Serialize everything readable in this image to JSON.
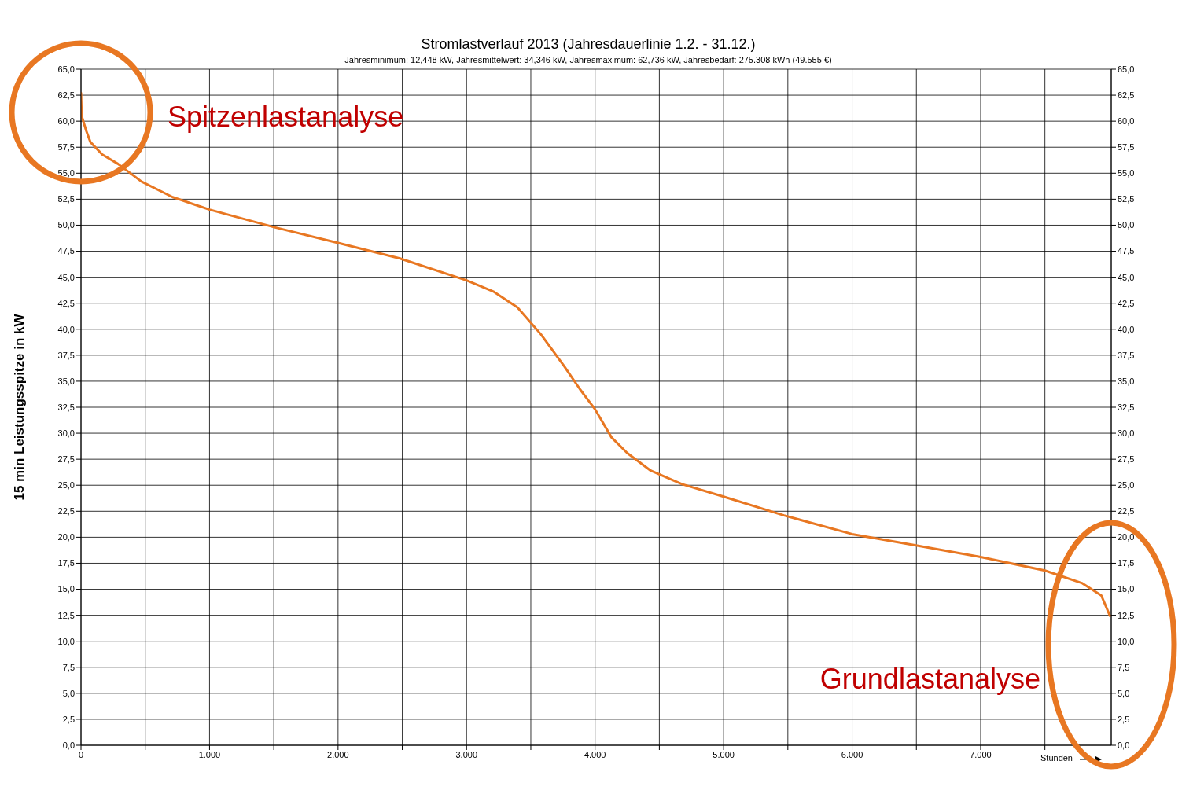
{
  "chart_data": {
    "type": "line",
    "title": "Stromlastverlauf 2013 (Jahresdauerlinie 1.2. - 31.12.)",
    "subtitle": "Jahresminimum: 12,448 kW, Jahresmittelwert: 34,346 kW, Jahresmaximum: 62,736 kW, Jahresbedarf: 275.308 kWh (49.555 €)",
    "xlabel": "Stunden",
    "ylabel": "15 min Leistungsspitze in kW",
    "annotations": [
      "Spitzenlastanalyse",
      "Grundlastanalyse"
    ],
    "x": [
      0,
      5,
      40,
      73,
      165,
      287,
      470,
      713,
      1000,
      1506,
      2000,
      2482,
      3000,
      3213,
      3396,
      3579,
      3762,
      3884,
      4000,
      4128,
      4250,
      4433,
      4677,
      5000,
      5470,
      6000,
      6506,
      7000,
      7500,
      7787,
      7939,
      8006
    ],
    "series": [
      {
        "color": "#e87722",
        "values": [
          62.7,
          60.5,
          59.1,
          58.0,
          56.8,
          55.9,
          54.2,
          52.7,
          51.5,
          49.8,
          48.3,
          46.8,
          44.7,
          43.6,
          42.1,
          39.5,
          36.4,
          34.2,
          32.3,
          29.6,
          28.1,
          26.4,
          25.1,
          23.9,
          22.1,
          20.3,
          19.2,
          18.1,
          16.8,
          15.6,
          14.4,
          12.448
        ]
      }
    ],
    "xlim": [
      0,
      8016
    ],
    "xticks": [
      0,
      {
        "value": 500,
        "label": null
      },
      {
        "value": 1000,
        "label": "1.000"
      },
      {
        "value": 1500,
        "label": null
      },
      {
        "value": 2000,
        "label": "2.000"
      },
      {
        "value": 2500,
        "label": null
      },
      {
        "value": 3000,
        "label": "3.000"
      },
      {
        "value": 3500,
        "label": null
      },
      {
        "value": 4000,
        "label": "4.000"
      },
      {
        "value": 4500,
        "label": null
      },
      {
        "value": 5000,
        "label": "5.000"
      },
      {
        "value": 5500,
        "label": null
      },
      {
        "value": 6000,
        "label": "6.000"
      },
      {
        "value": 6500,
        "label": null
      },
      {
        "value": 7000,
        "label": "7.000"
      },
      {
        "value": 7500,
        "label": null
      }
    ],
    "ylim": [
      0,
      65
    ],
    "yticks": [
      {
        "value": 0,
        "label": "0,0"
      },
      {
        "value": 2.5,
        "label": "2,5"
      },
      {
        "value": 5,
        "label": "5,0"
      },
      {
        "value": 7.5,
        "label": "7,5"
      },
      {
        "value": 10,
        "label": "10,0"
      },
      {
        "value": 12.5,
        "label": "12,5"
      },
      {
        "value": 15,
        "label": "15,0"
      },
      {
        "value": 17.5,
        "label": "17,5"
      },
      {
        "value": 20,
        "label": "20,0"
      },
      {
        "value": 22.5,
        "label": "22,5"
      },
      {
        "value": 25,
        "label": "25,0"
      },
      {
        "value": 27.5,
        "label": "27,5"
      },
      {
        "value": 30,
        "label": "30,0"
      },
      {
        "value": 32.5,
        "label": "32,5"
      },
      {
        "value": 35,
        "label": "35,0"
      },
      {
        "value": 37.5,
        "label": "37,5"
      },
      {
        "value": 40,
        "label": "40,0"
      },
      {
        "value": 42.5,
        "label": "42,5"
      },
      {
        "value": 45,
        "label": "45,0"
      },
      {
        "value": 47.5,
        "label": "47,5"
      },
      {
        "value": 50,
        "label": "50,0"
      },
      {
        "value": 52.5,
        "label": "52,5"
      },
      {
        "value": 55,
        "label": "55,0"
      },
      {
        "value": 57.5,
        "label": "57,5"
      },
      {
        "value": 60,
        "label": "60,0"
      },
      {
        "value": 62.5,
        "label": "62,5"
      },
      {
        "value": 65,
        "label": "65,0"
      }
    ],
    "y2lim": [
      0,
      65
    ],
    "y2ticks": [
      {
        "value": 0,
        "label": "0,0"
      },
      {
        "value": 2.5,
        "label": "2,5"
      },
      {
        "value": 5,
        "label": "5,0"
      },
      {
        "value": 7.5,
        "label": "7,5"
      },
      {
        "value": 10,
        "label": "10,0"
      },
      {
        "value": 12.5,
        "label": "12,5"
      },
      {
        "value": 15,
        "label": "15,0"
      },
      {
        "value": 17.5,
        "label": "17,5"
      },
      {
        "value": 20,
        "label": "20,0"
      },
      {
        "value": 22.5,
        "label": "22,5"
      },
      {
        "value": 25,
        "label": "25,0"
      },
      {
        "value": 27.5,
        "label": "27,5"
      },
      {
        "value": 30,
        "label": "30,0"
      },
      {
        "value": 32.5,
        "label": "32,5"
      },
      {
        "value": 35,
        "label": "35,0"
      },
      {
        "value": 37.5,
        "label": "37,5"
      },
      {
        "value": 40,
        "label": "40,0"
      },
      {
        "value": 42.5,
        "label": "42,5"
      },
      {
        "value": 45,
        "label": "45,0"
      },
      {
        "value": 47.5,
        "label": "47,5"
      },
      {
        "value": 50,
        "label": "50,0"
      },
      {
        "value": 52.5,
        "label": "52,5"
      },
      {
        "value": 55,
        "label": "55,0"
      },
      {
        "value": 57.5,
        "label": "57,5"
      },
      {
        "value": 60,
        "label": "60,0"
      },
      {
        "value": 62.5,
        "label": "62,5"
      },
      {
        "value": 65,
        "label": "65,0"
      }
    ],
    "grid": true,
    "legend": false,
    "marker": "none",
    "line_style": "solid"
  }
}
